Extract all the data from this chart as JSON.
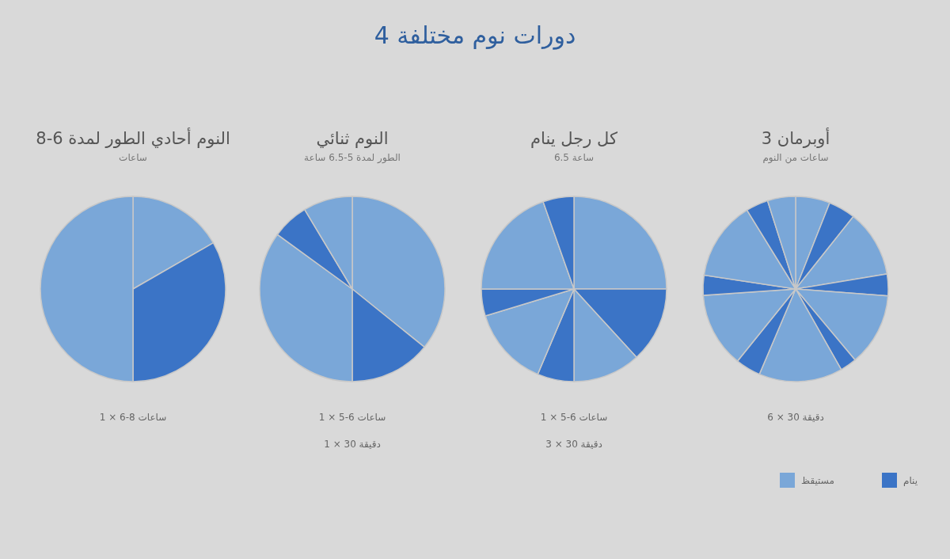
{
  "chart_data": [
    {
      "type": "other",
      "title": "4 دورات نوم مختلفة"
    },
    {
      "type": "pie",
      "title": "النوم أحادي الطور لمدة 6-8",
      "subtitle": "ساعات",
      "categories": [
        null,
        null,
        null
      ],
      "values": [
        16.7,
        33.3,
        50
      ],
      "colors": [
        "#7aa7d8",
        "#3b74c6",
        "#7aa7d8"
      ],
      "annotations": [
        "1 × 6-8 ساعات"
      ]
    },
    {
      "type": "pie",
      "title": "النوم ثنائي",
      "subtitle": "الطور لمدة 5-6.5 ساعة",
      "categories": [
        null,
        null,
        null,
        null,
        null
      ],
      "values": [
        35.8,
        14.2,
        35,
        6.4,
        8.6
      ],
      "colors": [
        "#7aa7d8",
        "#3b74c6",
        "#7aa7d8",
        "#3b74c6",
        "#7aa7d8"
      ],
      "annotations": [
        "1 × 5-6 ساعات",
        "1 × 30 دقيقة"
      ]
    },
    {
      "type": "pie",
      "title": "كل رجل ينام",
      "subtitle": "6.5 ساعة",
      "categories": [
        null,
        null,
        null,
        null,
        null,
        null,
        null,
        null
      ],
      "values": [
        25,
        13.2,
        11.8,
        6.4,
        13.9,
        4.7,
        19.6,
        5.4
      ],
      "colors": [
        "#7aa7d8",
        "#3b74c6",
        "#7aa7d8",
        "#3b74c6",
        "#7aa7d8",
        "#3b74c6",
        "#7aa7d8",
        "#3b74c6"
      ],
      "annotations": [
        "1 × 5-6 ساعات",
        "3 × 30 دقيقة"
      ]
    },
    {
      "type": "pie",
      "title": "أوبرمان 3",
      "subtitle": "ساعات من النوم",
      "categories": [
        "مستيقظ",
        "ينام",
        null,
        null,
        null,
        null,
        null,
        null,
        null,
        null,
        null,
        null,
        null
      ],
      "values": [
        6.0,
        4.7,
        11.7,
        3.8,
        12.7,
        2.9,
        14.6,
        4.4,
        13.1,
        3.5,
        13.8,
        3.9,
        4.9
      ],
      "colors": [
        "#7aa7d8",
        "#3b74c6",
        "#7aa7d8",
        "#3b74c6",
        "#7aa7d8",
        "#3b74c6",
        "#7aa7d8",
        "#3b74c6",
        "#7aa7d8",
        "#3b74c6",
        "#7aa7d8",
        "#3b74c6",
        "#7aa7d8"
      ],
      "annotations": [
        "6 × 30 دقيقة"
      ],
      "legend": "bottom right"
    }
  ]
}
